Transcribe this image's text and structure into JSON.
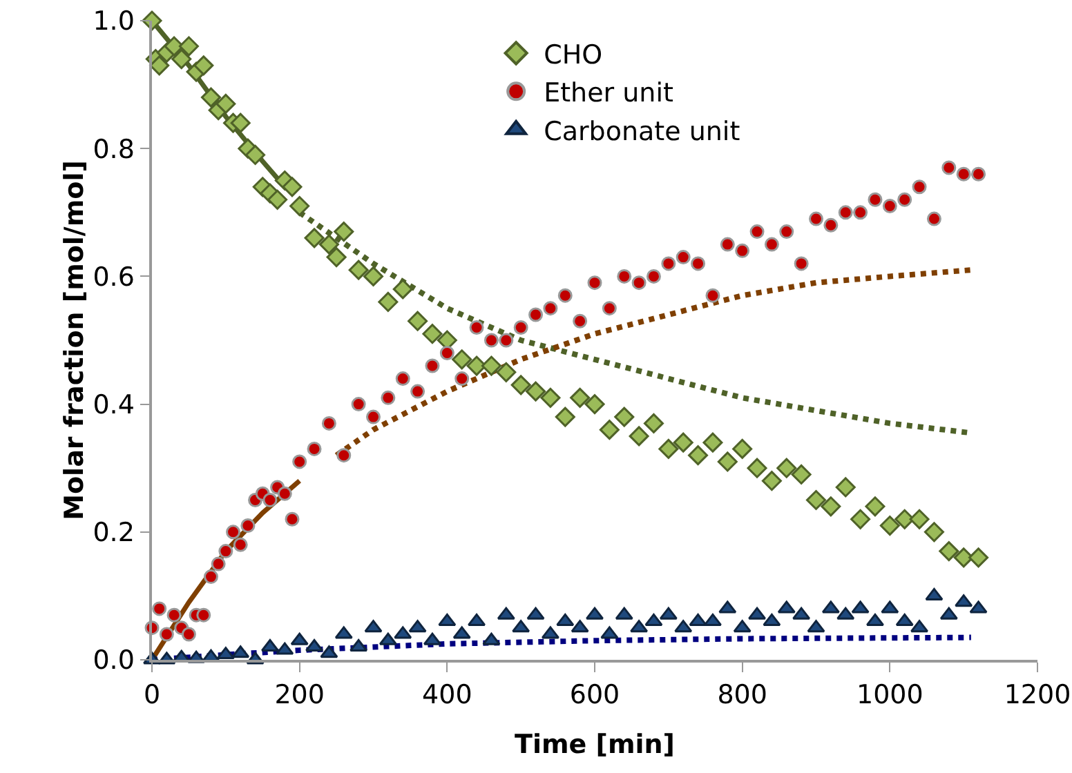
{
  "chart_data": {
    "type": "scatter",
    "xlabel": "Time [min]",
    "ylabel": "Molar fraction [mol/mol]",
    "xlim": [
      0,
      1200
    ],
    "xticks": [
      0,
      200,
      400,
      600,
      800,
      1000,
      1200
    ],
    "ylim": [
      0,
      1.0
    ],
    "yticks": [
      {
        "value": 0,
        "label": "0.0"
      },
      0.2,
      0.4,
      0.6,
      0.8,
      {
        "value": 1,
        "label": "1.0"
      }
    ],
    "grid": false,
    "legend": "top",
    "series": [
      {
        "name": "CHO",
        "color": "#9bbb59",
        "marker": "diamond",
        "x": [
          0,
          5,
          10,
          20,
          30,
          40,
          50,
          60,
          70,
          80,
          90,
          100,
          110,
          120,
          130,
          140,
          150,
          160,
          170,
          180,
          190,
          200,
          220,
          240,
          250,
          260,
          280,
          300,
          320,
          340,
          360,
          380,
          400,
          420,
          440,
          460,
          480,
          500,
          520,
          540,
          560,
          580,
          600,
          620,
          640,
          660,
          680,
          700,
          720,
          740,
          760,
          780,
          800,
          820,
          840,
          860,
          880,
          900,
          920,
          940,
          960,
          980,
          1000,
          1020,
          1040,
          1060,
          1080,
          1100,
          1120
        ],
        "values": [
          1.0,
          0.94,
          0.93,
          0.95,
          0.96,
          0.94,
          0.96,
          0.92,
          0.93,
          0.88,
          0.86,
          0.87,
          0.84,
          0.84,
          0.8,
          0.79,
          0.74,
          0.73,
          0.72,
          0.75,
          0.74,
          0.71,
          0.66,
          0.65,
          0.63,
          0.67,
          0.61,
          0.6,
          0.56,
          0.58,
          0.53,
          0.51,
          0.5,
          0.47,
          0.46,
          0.46,
          0.45,
          0.43,
          0.42,
          0.41,
          0.38,
          0.41,
          0.4,
          0.36,
          0.38,
          0.35,
          0.37,
          0.33,
          0.34,
          0.32,
          0.34,
          0.31,
          0.33,
          0.3,
          0.28,
          0.3,
          0.29,
          0.25,
          0.24,
          0.27,
          0.22,
          0.24,
          0.21,
          0.22,
          0.22,
          0.2,
          0.17,
          0.16,
          0.16
        ]
      },
      {
        "name": "Ether unit",
        "color": "#c00000",
        "marker": "circle",
        "x": [
          0,
          10,
          20,
          30,
          40,
          50,
          60,
          70,
          80,
          90,
          100,
          110,
          120,
          130,
          140,
          150,
          160,
          170,
          180,
          190,
          200,
          220,
          240,
          260,
          280,
          300,
          320,
          340,
          360,
          380,
          400,
          420,
          440,
          460,
          480,
          500,
          520,
          540,
          560,
          580,
          600,
          620,
          640,
          660,
          680,
          700,
          720,
          740,
          760,
          780,
          800,
          820,
          840,
          860,
          880,
          900,
          920,
          940,
          960,
          980,
          1000,
          1020,
          1040,
          1060,
          1080,
          1100,
          1120
        ],
        "values": [
          0.05,
          0.08,
          0.04,
          0.07,
          0.05,
          0.04,
          0.07,
          0.07,
          0.13,
          0.15,
          0.17,
          0.2,
          0.18,
          0.21,
          0.25,
          0.26,
          0.25,
          0.27,
          0.26,
          0.22,
          0.31,
          0.33,
          0.37,
          0.32,
          0.4,
          0.38,
          0.41,
          0.44,
          0.42,
          0.46,
          0.48,
          0.44,
          0.52,
          0.5,
          0.5,
          0.52,
          0.54,
          0.55,
          0.57,
          0.53,
          0.59,
          0.55,
          0.6,
          0.59,
          0.6,
          0.62,
          0.63,
          0.62,
          0.57,
          0.65,
          0.64,
          0.67,
          0.65,
          0.67,
          0.62,
          0.69,
          0.68,
          0.7,
          0.7,
          0.72,
          0.71,
          0.72,
          0.74,
          0.69,
          0.77,
          0.76,
          0.76
        ]
      },
      {
        "name": "Carbonate unit",
        "color": "#1f497d",
        "marker": "triangle",
        "x": [
          0,
          20,
          40,
          60,
          80,
          100,
          120,
          140,
          160,
          180,
          200,
          220,
          240,
          260,
          280,
          300,
          320,
          340,
          360,
          380,
          400,
          420,
          440,
          460,
          480,
          500,
          520,
          540,
          560,
          580,
          600,
          620,
          640,
          660,
          680,
          700,
          720,
          740,
          760,
          780,
          800,
          820,
          840,
          860,
          880,
          900,
          920,
          940,
          960,
          980,
          1000,
          1020,
          1040,
          1060,
          1080,
          1100,
          1120
        ],
        "values": [
          0,
          0,
          0.003,
          0.002,
          0.004,
          0.008,
          0.01,
          0,
          0.02,
          0.015,
          0.03,
          0.02,
          0.01,
          0.04,
          0.02,
          0.05,
          0.03,
          0.04,
          0.05,
          0.03,
          0.06,
          0.04,
          0.06,
          0.03,
          0.07,
          0.05,
          0.07,
          0.04,
          0.06,
          0.05,
          0.07,
          0.04,
          0.07,
          0.05,
          0.06,
          0.07,
          0.05,
          0.06,
          0.06,
          0.08,
          0.05,
          0.07,
          0.06,
          0.08,
          0.07,
          0.05,
          0.08,
          0.07,
          0.08,
          0.06,
          0.08,
          0.06,
          0.05,
          0.1,
          0.07,
          0.09,
          0.08
        ]
      },
      {
        "type": "line",
        "color": "#4f6228",
        "line_style": "solid",
        "x": [
          0,
          50,
          100,
          150,
          180
        ],
        "values": [
          1.0,
          0.93,
          0.85,
          0.78,
          0.74
        ]
      },
      {
        "type": "line",
        "color": "#4f6228",
        "line_style": "dotted",
        "x": [
          200,
          300,
          400,
          500,
          600,
          700,
          800,
          900,
          1000,
          1110
        ],
        "values": [
          0.7,
          0.62,
          0.55,
          0.5,
          0.47,
          0.44,
          0.41,
          0.39,
          0.37,
          0.355
        ]
      },
      {
        "type": "line",
        "color": "#7f3f00",
        "line_style": "solid",
        "x": [
          0,
          50,
          100,
          150,
          200
        ],
        "values": [
          0,
          0.09,
          0.17,
          0.23,
          0.28
        ]
      },
      {
        "type": "line",
        "color": "#7f3f00",
        "line_style": "dotted",
        "x": [
          250,
          300,
          400,
          500,
          600,
          700,
          800,
          900,
          1000,
          1110
        ],
        "values": [
          0.32,
          0.36,
          0.42,
          0.47,
          0.51,
          0.54,
          0.57,
          0.59,
          0.6,
          0.61
        ]
      },
      {
        "type": "line",
        "color": "#000080",
        "line_style": "dotted",
        "x": [
          0,
          100,
          200,
          300,
          400,
          600,
          800,
          1110
        ],
        "values": [
          0,
          0.008,
          0.015,
          0.02,
          0.025,
          0.03,
          0.033,
          0.035
        ]
      }
    ]
  }
}
